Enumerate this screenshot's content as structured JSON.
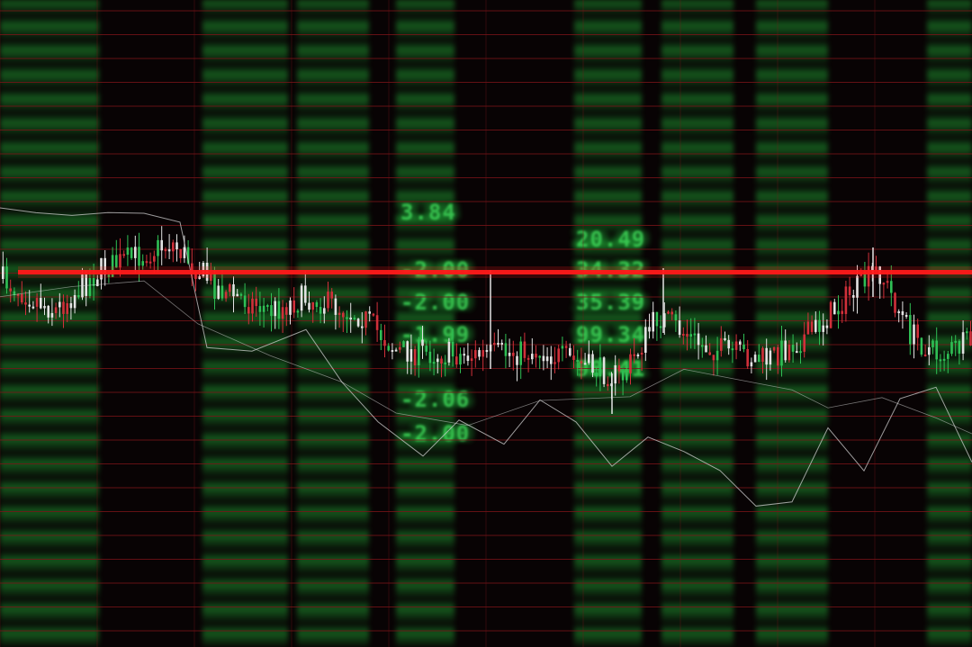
{
  "scene": {
    "description_free": true,
    "colors": {
      "background": "#080304",
      "grid_line": "#7a1418",
      "level_line": "#ff1a1a",
      "candle_up": "#e3e3e3",
      "candle_down": "#d0303a",
      "candle_green": "#2fbf55",
      "moving_average": "#cfcfcf",
      "digits": "#3fdc5a"
    },
    "readouts_center": [
      "3.84",
      "-2.00",
      "-2.00",
      "-1.99",
      "-2.06",
      "-2.00"
    ],
    "readouts_right": [
      "20.49",
      "34.32",
      "35.39",
      "99.34",
      "98.41"
    ]
  }
}
